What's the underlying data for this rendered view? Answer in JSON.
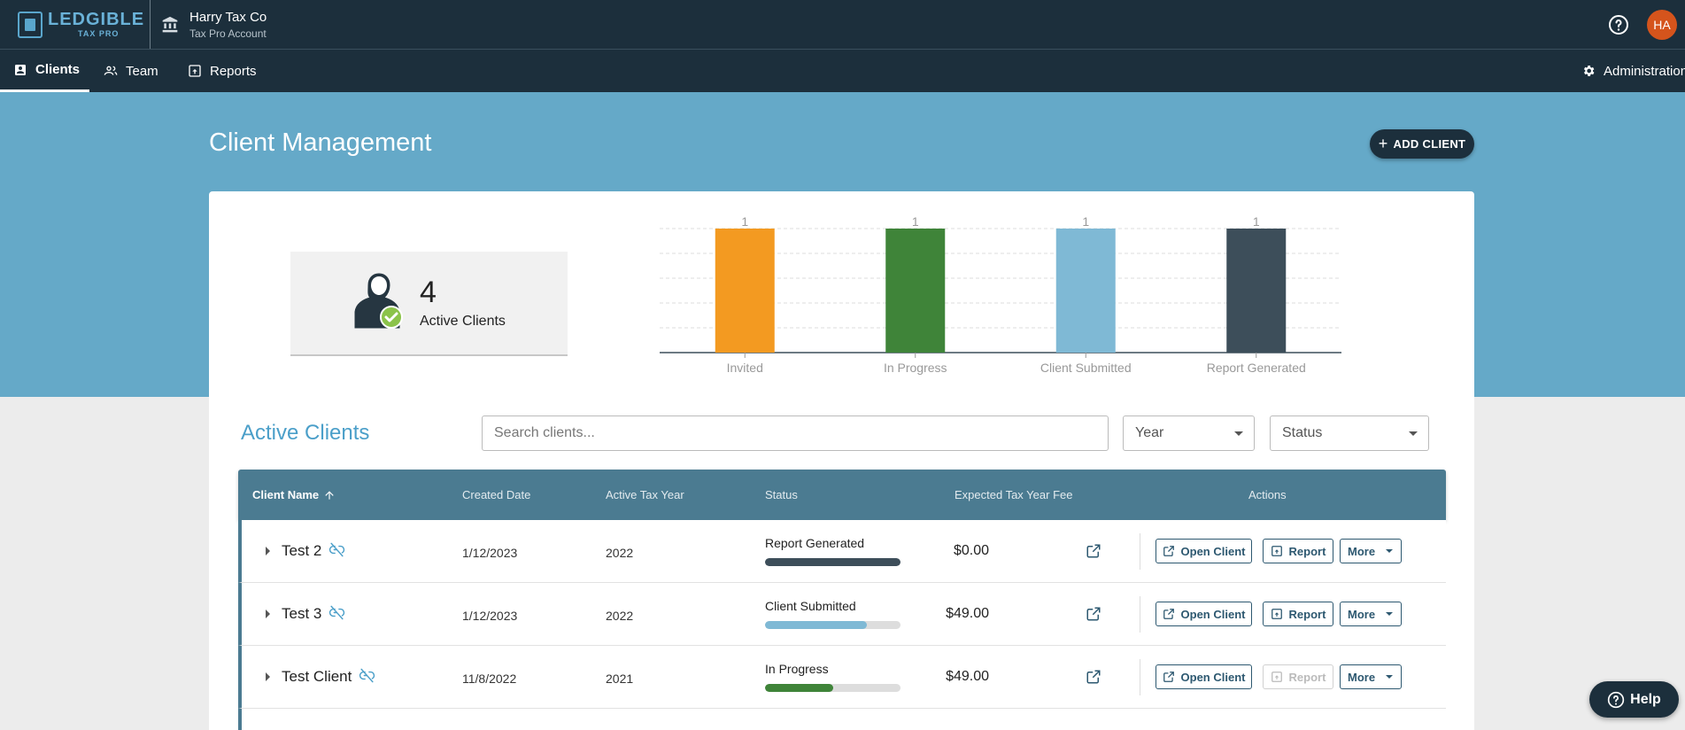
{
  "header": {
    "logo_main": "LEDGIBLE",
    "logo_sub": "TAX PRO",
    "org_name": "Harry Tax Co",
    "org_sub": "Tax Pro Account",
    "avatar_initials": "HA"
  },
  "nav": {
    "tabs": [
      {
        "label": "Clients",
        "icon": "contact-icon",
        "active": true
      },
      {
        "label": "Team",
        "icon": "people-icon",
        "active": false
      },
      {
        "label": "Reports",
        "icon": "report-icon",
        "active": false
      }
    ],
    "admin_label": "Administration"
  },
  "page": {
    "title": "Client Management",
    "add_client_label": "ADD CLIENT"
  },
  "summary": {
    "count": "4",
    "label": "Active Clients"
  },
  "chart_data": {
    "type": "bar",
    "categories": [
      "Invited",
      "In Progress",
      "Client Submitted",
      "Report Generated"
    ],
    "values": [
      1,
      1,
      1,
      1
    ],
    "colors": [
      "#f39a21",
      "#3f8439",
      "#7fb9d5",
      "#3d4e5a"
    ],
    "ylim": [
      0,
      1
    ],
    "grid": true
  },
  "clients_section": {
    "title": "Active Clients",
    "search_placeholder": "Search clients...",
    "year_filter": "Year",
    "status_filter": "Status"
  },
  "table": {
    "columns": {
      "name": "Client Name",
      "created": "Created Date",
      "year": "Active Tax Year",
      "status": "Status",
      "fee": "Expected Tax Year Fee",
      "actions": "Actions"
    },
    "open_label": "Open Client",
    "report_label": "Report",
    "more_label": "More",
    "rows": [
      {
        "name": "Test 2",
        "created": "1/12/2023",
        "year": "2022",
        "status": "Report Generated",
        "progress": 1.0,
        "color": "#3d4e5a",
        "fee": "$0.00",
        "report_enabled": true
      },
      {
        "name": "Test 3",
        "created": "1/12/2023",
        "year": "2022",
        "status": "Client Submitted",
        "progress": 0.75,
        "color": "#7fb9d5",
        "fee": "$49.00",
        "report_enabled": true
      },
      {
        "name": "Test Client",
        "created": "11/8/2022",
        "year": "2021",
        "status": "In Progress",
        "progress": 0.5,
        "color": "#3f8439",
        "fee": "$49.00",
        "report_enabled": false
      }
    ]
  },
  "help_label": "Help"
}
